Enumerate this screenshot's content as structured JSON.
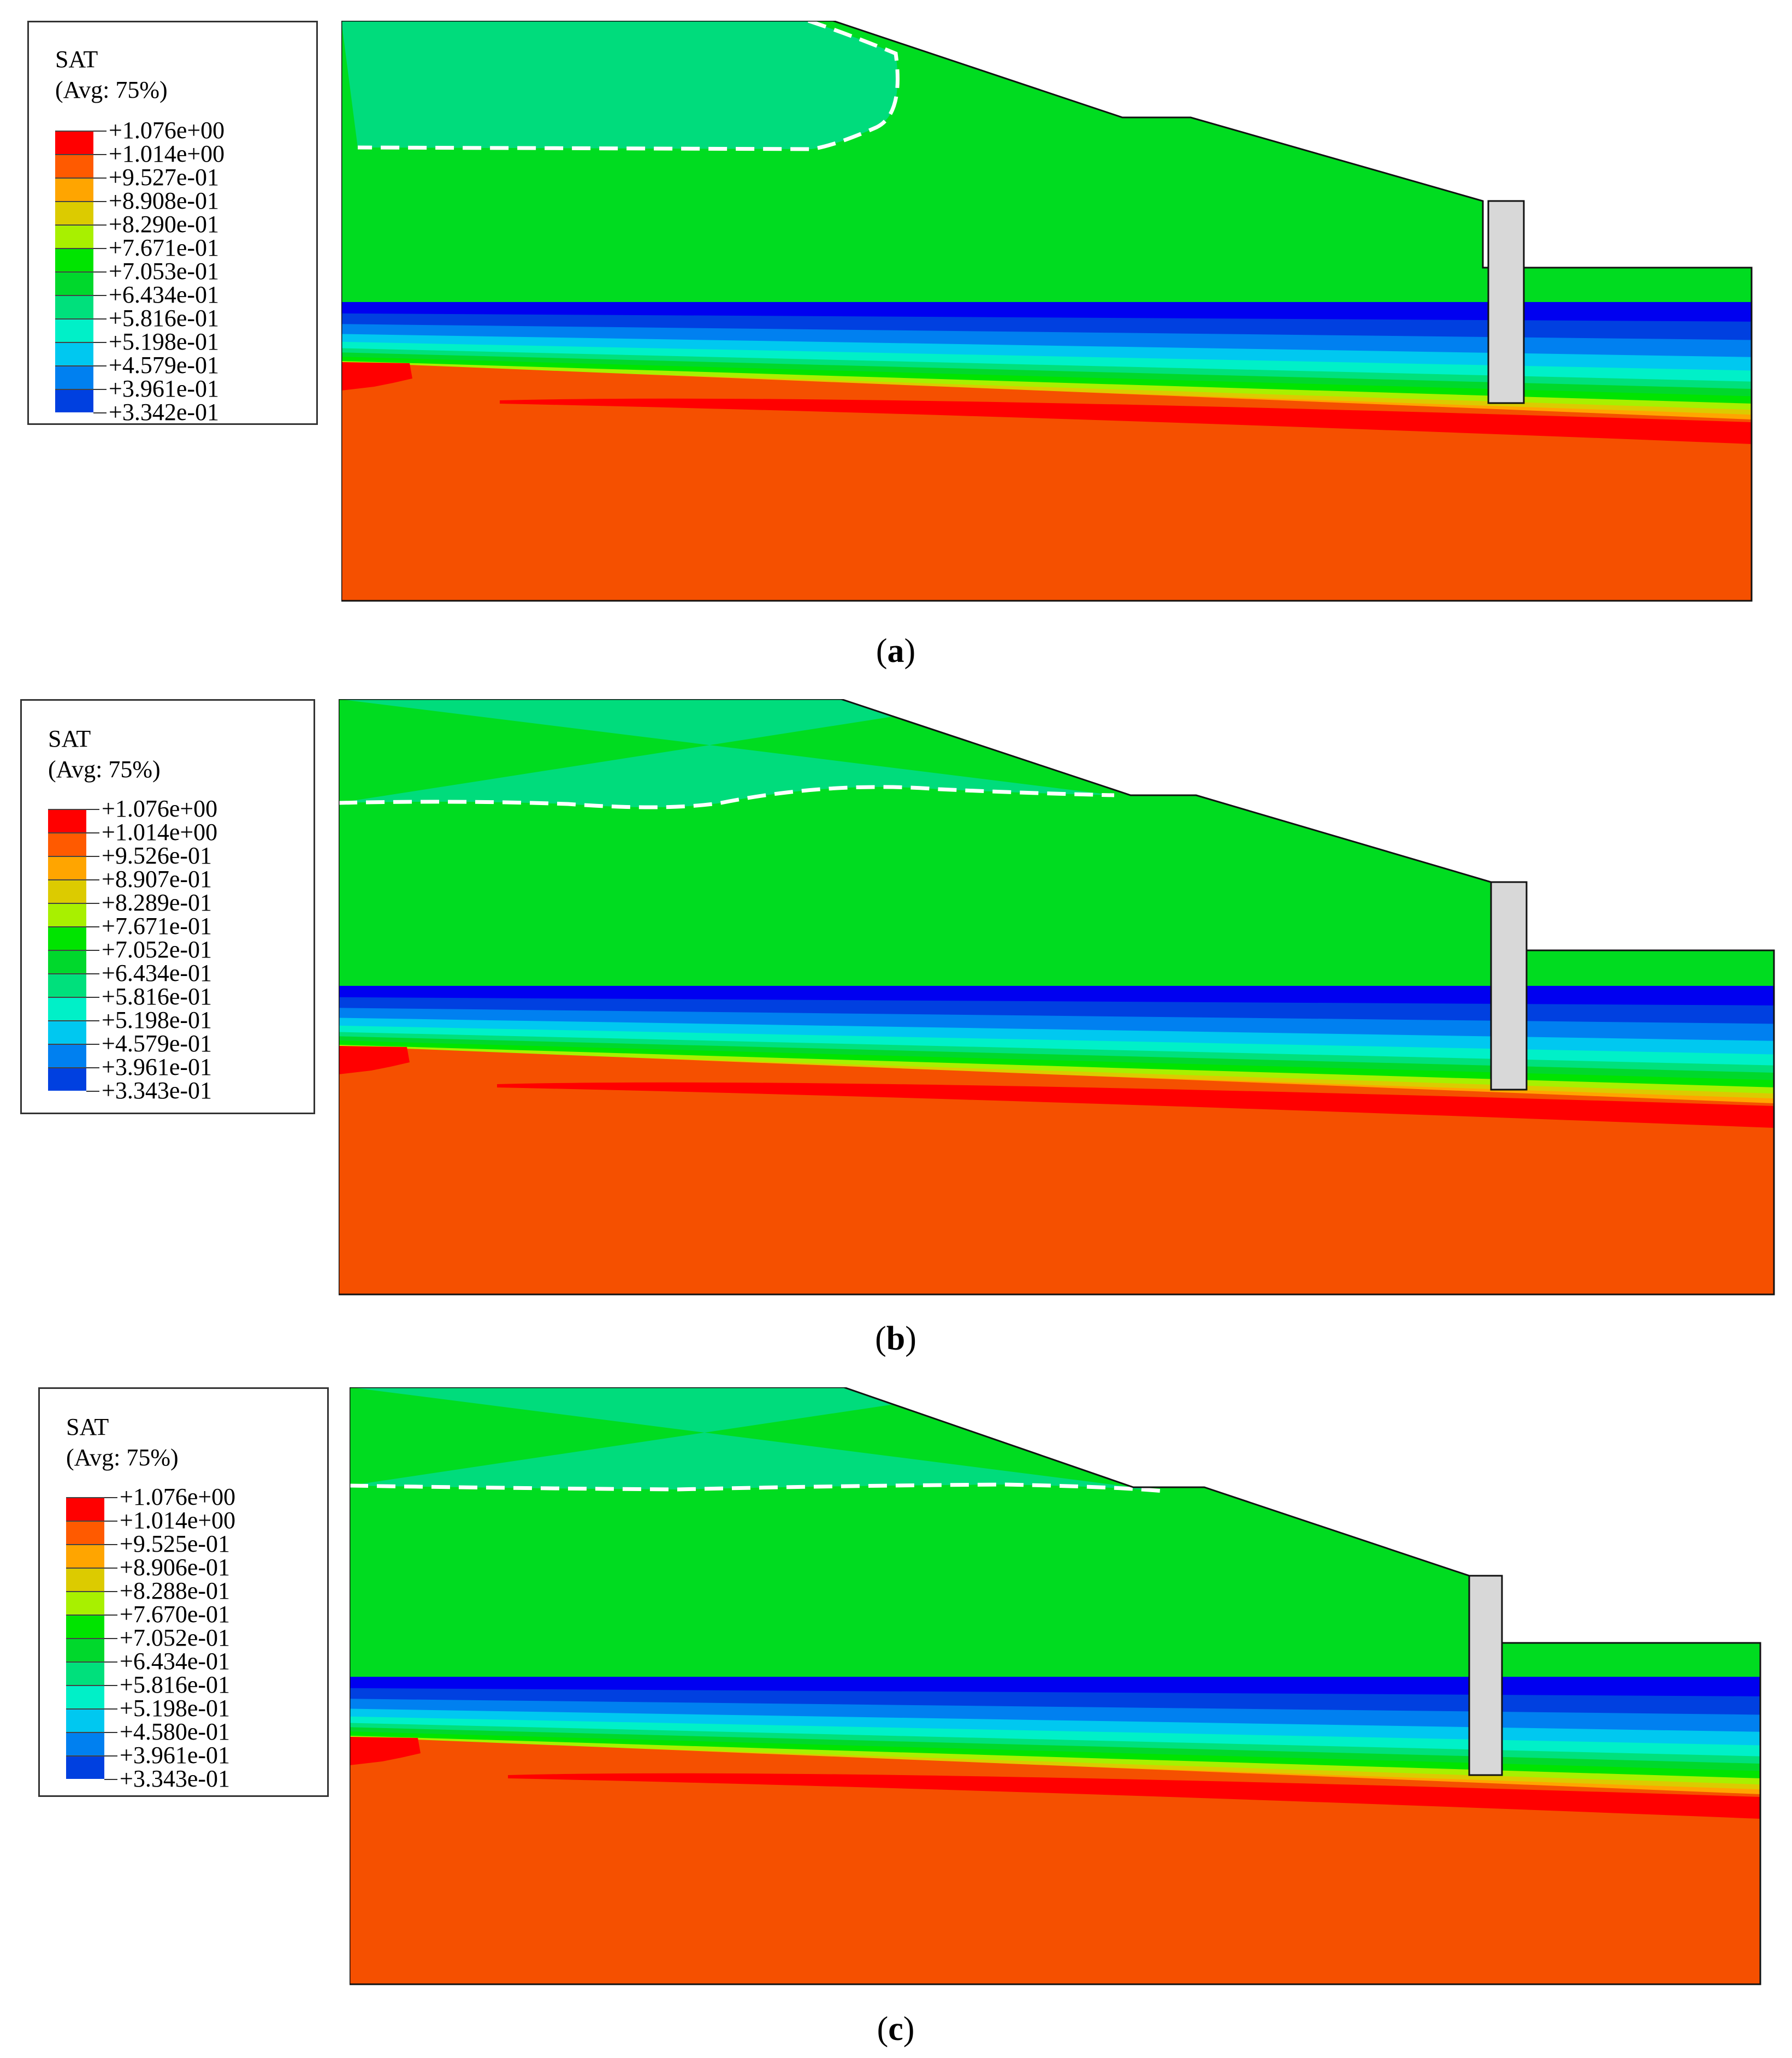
{
  "chart_data": [
    {
      "type": "contour",
      "panel": "a",
      "caption_letter": "a",
      "legend": {
        "title": "SAT",
        "subtitle": "(Avg: 75%)",
        "levels": [
          "+1.076e+00",
          "+1.014e+00",
          "+9.527e-01",
          "+8.908e-01",
          "+8.290e-01",
          "+7.671e-01",
          "+7.053e-01",
          "+6.434e-01",
          "+5.816e-01",
          "+5.198e-01",
          "+4.579e-01",
          "+3.961e-01",
          "+3.342e-01"
        ]
      },
      "zones": {
        "upper_unsaturated": 0.64,
        "upper_soil": 0.73,
        "clay_layer_top": 0.33,
        "bedrock": 1.02,
        "saturated_band": 1.07
      },
      "wetting_front": "dashed white line"
    },
    {
      "type": "contour",
      "panel": "b",
      "caption_letter": "b",
      "legend": {
        "title": "SAT",
        "subtitle": "(Avg: 75%)",
        "levels": [
          "+1.076e+00",
          "+1.014e+00",
          "+9.526e-01",
          "+8.907e-01",
          "+8.289e-01",
          "+7.671e-01",
          "+7.052e-01",
          "+6.434e-01",
          "+5.816e-01",
          "+5.198e-01",
          "+4.579e-01",
          "+3.961e-01",
          "+3.343e-01"
        ]
      },
      "zones": {
        "upper_unsaturated": 0.64,
        "upper_soil": 0.73,
        "clay_layer_top": 0.33,
        "bedrock": 1.02,
        "saturated_band": 1.07
      },
      "wetting_front": "dashed white line"
    },
    {
      "type": "contour",
      "panel": "c",
      "caption_letter": "c",
      "legend": {
        "title": "SAT",
        "subtitle": "(Avg: 75%)",
        "levels": [
          "+1.076e+00",
          "+1.014e+00",
          "+9.525e-01",
          "+8.906e-01",
          "+8.288e-01",
          "+7.670e-01",
          "+7.052e-01",
          "+6.434e-01",
          "+5.816e-01",
          "+5.198e-01",
          "+4.580e-01",
          "+3.961e-01",
          "+3.343e-01"
        ]
      },
      "zones": {
        "upper_unsaturated": 0.64,
        "upper_soil": 0.73,
        "clay_layer_top": 0.33,
        "bedrock": 1.02,
        "saturated_band": 1.07
      },
      "wetting_front": "dashed white line"
    }
  ],
  "colors": {
    "scale": [
      "#ff0000",
      "#ff5a00",
      "#ffa500",
      "#dccb00",
      "#a8f000",
      "#00e400",
      "#00d82c",
      "#00e07c",
      "#00f0c8",
      "#00c8f0",
      "#0080f0",
      "#0040e0",
      "#0000f0"
    ],
    "upper_unsaturated": "#00dc7c",
    "upper_soil": "#00dc20",
    "bedrock": "#f55000",
    "saturated_band": "#ff0000",
    "pile": "#d8d8d8"
  }
}
